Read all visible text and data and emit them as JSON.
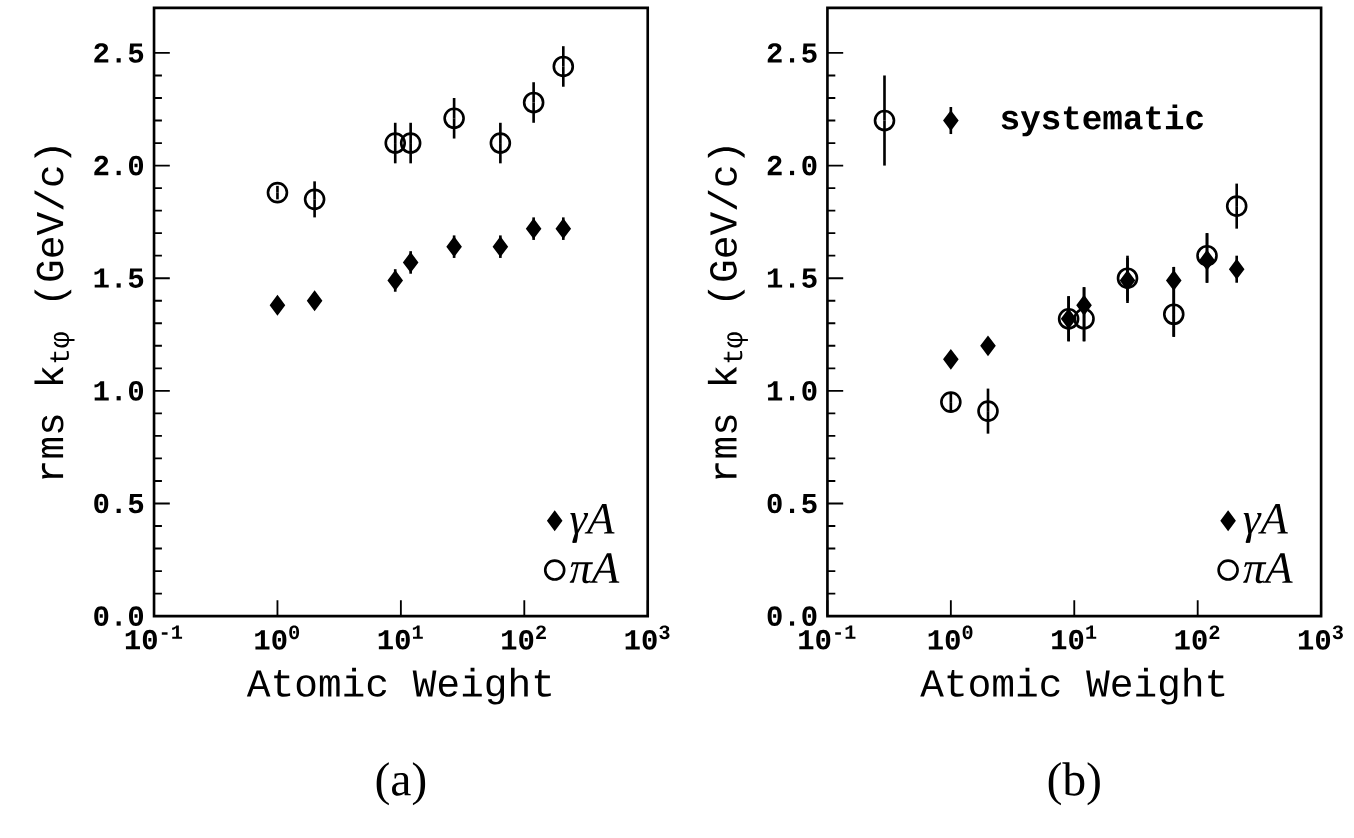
{
  "chart_data": [
    {
      "type": "scatter",
      "title": "(a)",
      "xlabel": "Atomic Weight",
      "ylabel": "rms k$_{tφ}$  (GeV/c)",
      "log": "x",
      "legend": "bottom right",
      "grid": false,
      "x": [
        1,
        2,
        9,
        12,
        27,
        64,
        119,
        207
      ],
      "xlim": [
        0.1,
        1000
      ],
      "ylim": [
        0,
        2.7
      ],
      "xticks": [
        {
          "value": 0.1,
          "label": "10$^{-1}$"
        },
        {
          "value": 1,
          "label": "10$^{0}$"
        },
        {
          "value": 10,
          "label": "10$^{1}$"
        },
        {
          "value": 100,
          "label": "10$^{2}$"
        },
        {
          "value": 1000,
          "label": "10$^{3}$"
        }
      ],
      "yticks": [
        {
          "value": 0,
          "label": "0.0"
        },
        {
          "value": 0.5,
          "label": "0.5"
        },
        {
          "value": 1,
          "label": "1.0"
        },
        {
          "value": 1.5,
          "label": "1.5"
        },
        {
          "value": 2,
          "label": "2.0"
        },
        {
          "value": 2.5,
          "label": "2.5"
        }
      ],
      "series": [
        {
          "name": "γA",
          "color": "#000000",
          "marker": "diamond",
          "values": [
            1.38,
            1.4,
            1.49,
            1.57,
            1.64,
            1.64,
            1.72,
            1.72
          ],
          "errors": [
            0.02,
            0.02,
            0.05,
            0.05,
            0.05,
            0.05,
            0.05,
            0.05
          ]
        },
        {
          "name": "πA",
          "color": "#000000",
          "marker": "circle",
          "values": [
            1.88,
            1.85,
            2.1,
            2.1,
            2.21,
            2.1,
            2.28,
            2.44
          ],
          "errors": [
            0.03,
            0.08,
            0.09,
            0.09,
            0.09,
            0.09,
            0.09,
            0.09
          ]
        }
      ]
    },
    {
      "type": "scatter",
      "title": "(b)",
      "xlabel": "Atomic Weight",
      "ylabel": "rms k$_{tφ}$  (GeV/c)",
      "log": "x",
      "legend": "bottom right",
      "grid": false,
      "x": [
        1,
        2,
        9,
        12,
        27,
        64,
        119,
        207
      ],
      "xlim": [
        0.1,
        1000
      ],
      "ylim": [
        0,
        2.7
      ],
      "xticks": [
        {
          "value": 0.1,
          "label": "10$^{-1}$"
        },
        {
          "value": 1,
          "label": "10$^{0}$"
        },
        {
          "value": 10,
          "label": "10$^{1}$"
        },
        {
          "value": 100,
          "label": "10$^{2}$"
        },
        {
          "value": 1000,
          "label": "10$^{3}$"
        }
      ],
      "yticks": [
        {
          "value": 0,
          "label": "0.0"
        },
        {
          "value": 0.5,
          "label": "0.5"
        },
        {
          "value": 1,
          "label": "1.0"
        },
        {
          "value": 1.5,
          "label": "1.5"
        },
        {
          "value": 2,
          "label": "2.0"
        },
        {
          "value": 2.5,
          "label": "2.5"
        }
      ],
      "annotations": [
        "systematic"
      ],
      "series": [
        {
          "name": "γA",
          "color": "#000000",
          "marker": "diamond",
          "values": [
            1.14,
            1.2,
            1.32,
            1.38,
            1.49,
            1.49,
            1.58,
            1.54
          ],
          "errors": [
            0.02,
            0.02,
            0.1,
            [
              1.22,
              1.46
            ],
            0.1,
            [
              1.24,
              1.55
            ],
            [
              1.48,
              1.7
            ],
            0.06
          ]
        },
        {
          "name": "πA",
          "color": "#000000",
          "marker": "circle",
          "values": [
            0.95,
            0.91,
            1.32,
            1.32,
            1.5,
            1.34,
            1.6,
            1.82
          ],
          "errors": [
            0.04,
            0.1,
            0.1,
            [
              1.22,
              1.46
            ],
            0.1,
            [
              1.24,
              1.55
            ],
            [
              1.48,
              1.7
            ],
            0.1
          ]
        },
        {
          "color": "#000000",
          "marker": "circle",
          "x": [
            0.29
          ],
          "values": [
            2.2
          ],
          "errors": [
            0.2
          ]
        },
        {
          "color": "#000000",
          "marker": "diamond",
          "x": [
            1
          ],
          "values": [
            2.2
          ],
          "errors": [
            0.06
          ]
        }
      ]
    }
  ]
}
